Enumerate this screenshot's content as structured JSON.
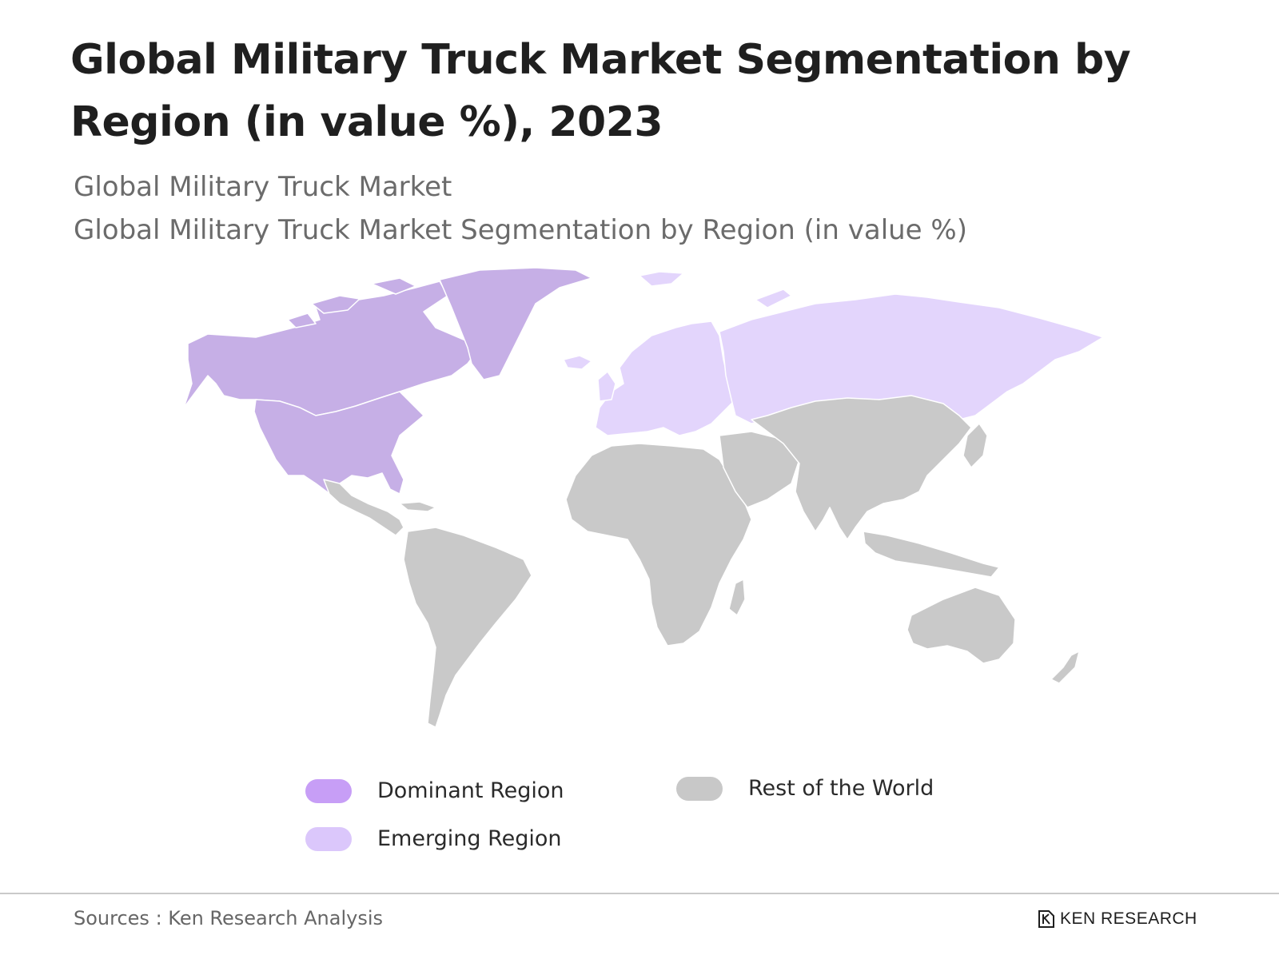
{
  "header": {
    "title": "Global Military Truck Market Segmentation by Region (in value %), 2023",
    "subtitle_line1": "Global Military Truck Market",
    "subtitle_line2": "Global Military Truck Market Segmentation by Region (in value %)"
  },
  "colors": {
    "dominant": "#c6afe6",
    "emerging": "#e3d5fc",
    "rest": "#c9c9c9",
    "legend_dominant": "#c79ef6",
    "legend_emerging": "#dbc7fb",
    "legend_rest": "#c8c8c8"
  },
  "map": {
    "regions": [
      {
        "name": "North America",
        "category": "Dominant Region"
      },
      {
        "name": "Europe",
        "category": "Emerging Region"
      },
      {
        "name": "Russia",
        "category": "Emerging Region"
      },
      {
        "name": "Latin America",
        "category": "Rest of the World"
      },
      {
        "name": "Africa",
        "category": "Rest of the World"
      },
      {
        "name": "Middle East",
        "category": "Rest of the World"
      },
      {
        "name": "Asia",
        "category": "Rest of the World"
      },
      {
        "name": "Oceania",
        "category": "Rest of the World"
      }
    ]
  },
  "legend": {
    "dominant": "Dominant Region",
    "emerging": "Emerging Region",
    "rest": "Rest of the World"
  },
  "footer": {
    "source": "Sources : Ken Research Analysis",
    "logo_text": "KEN RESEARCH"
  }
}
